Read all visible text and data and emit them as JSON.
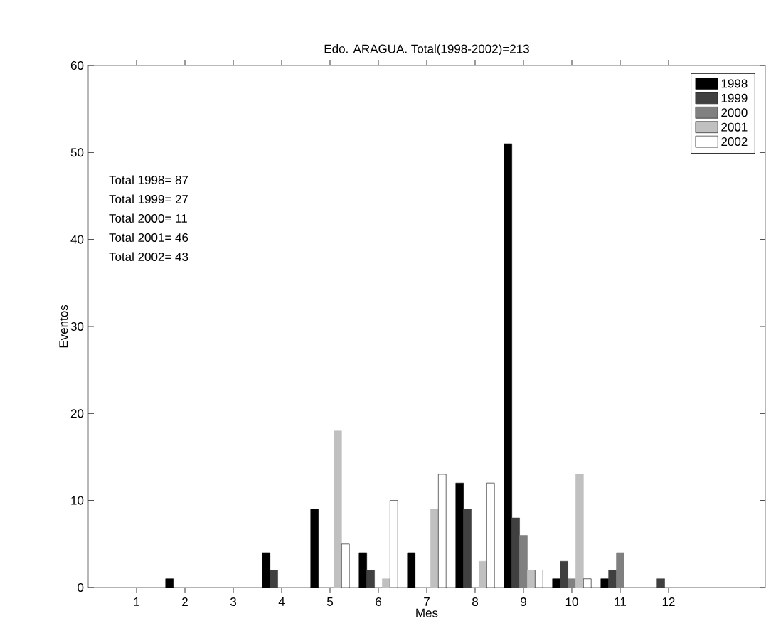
{
  "chart_data": {
    "type": "bar",
    "title": "Edo. ARAGUA.    Total(1998-2002)=213",
    "xlabel": "Mes",
    "ylabel": "Eventos",
    "x": [
      1,
      2,
      3,
      4,
      5,
      6,
      7,
      8,
      9,
      10,
      11,
      12
    ],
    "xlim": [
      0,
      14
    ],
    "xticks": [
      1,
      2,
      3,
      4,
      5,
      6,
      7,
      8,
      9,
      10,
      11,
      12
    ],
    "ylim": [
      0,
      60
    ],
    "yticks": [
      0,
      10,
      20,
      30,
      40,
      50,
      60
    ],
    "legend": "top right",
    "series": [
      {
        "name": "1998",
        "color": "#000000",
        "values": [
          0,
          1,
          0,
          4,
          9,
          4,
          4,
          12,
          51,
          1,
          1,
          0
        ]
      },
      {
        "name": "1999",
        "color": "#404040",
        "values": [
          0,
          0,
          0,
          2,
          0,
          2,
          0,
          9,
          8,
          3,
          2,
          1
        ]
      },
      {
        "name": "2000",
        "color": "#808080",
        "values": [
          0,
          0,
          0,
          0,
          0,
          0,
          0,
          0,
          6,
          1,
          4,
          0
        ]
      },
      {
        "name": "2001",
        "color": "#c0c0c0",
        "values": [
          0,
          0,
          0,
          0,
          18,
          1,
          9,
          3,
          2,
          13,
          0,
          0
        ]
      },
      {
        "name": "2002",
        "color": "#ffffff",
        "values": [
          0,
          0,
          0,
          0,
          5,
          10,
          13,
          12,
          2,
          1,
          0,
          0
        ]
      }
    ],
    "annotations": [
      "Total 1998=   87",
      "Total 1999=   27",
      "Total 2000=   11",
      "Total 2001=   46",
      "Total 2002=   43"
    ]
  }
}
